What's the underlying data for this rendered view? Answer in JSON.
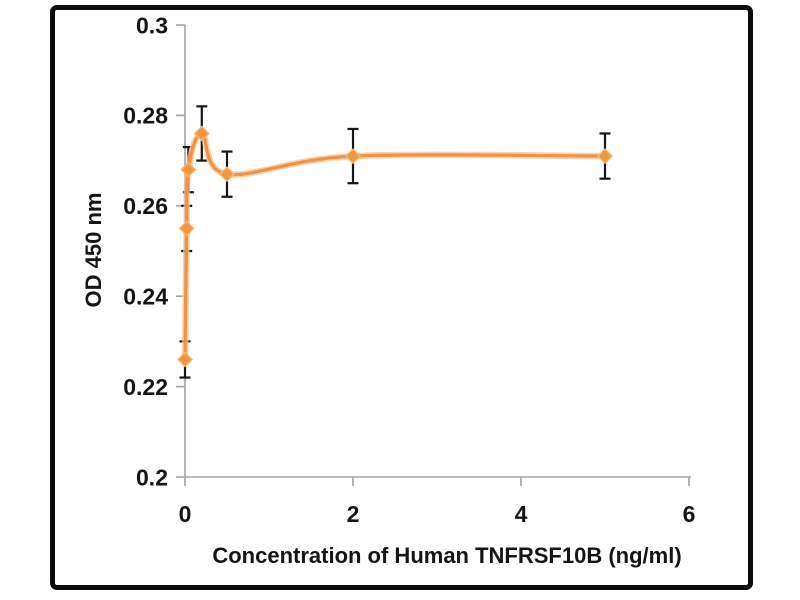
{
  "page": {
    "background": "#ffffff",
    "frame_color": "#0c0c0c"
  },
  "chart_data": {
    "type": "line",
    "title": "",
    "xlabel": "Concentration of Human TNFRSF10B (ng/ml)",
    "ylabel": "OD 450 nm",
    "x": [
      0,
      0.02,
      0.04,
      0.2,
      0.5,
      2,
      5
    ],
    "y": [
      0.226,
      0.255,
      0.268,
      0.276,
      0.267,
      0.271,
      0.271
    ],
    "y_err": [
      0.004,
      0.005,
      0.005,
      0.006,
      0.005,
      0.006,
      0.005
    ],
    "xlim": [
      0,
      6
    ],
    "ylim": [
      0.2,
      0.3
    ],
    "x_ticks": [
      0,
      2,
      4,
      6
    ],
    "x_tick_labels": [
      "0",
      "2",
      "4",
      "6"
    ],
    "y_ticks": [
      0.2,
      0.22,
      0.24,
      0.26,
      0.28,
      0.3
    ],
    "y_tick_labels": [
      "0.2",
      "0.22",
      "0.24",
      "0.26",
      "0.28",
      "0.3"
    ],
    "grid": false,
    "legend": null,
    "marker": "diamond",
    "smooth": true,
    "error_bars": true,
    "colors": {
      "line": "#EF9245",
      "line_halo": "#F9C48F",
      "marker_fill": "#F2953F",
      "marker_stroke": "#F8B571",
      "error_bar": "#161616",
      "axis": "#A3A3A3",
      "text": "#151515"
    }
  }
}
